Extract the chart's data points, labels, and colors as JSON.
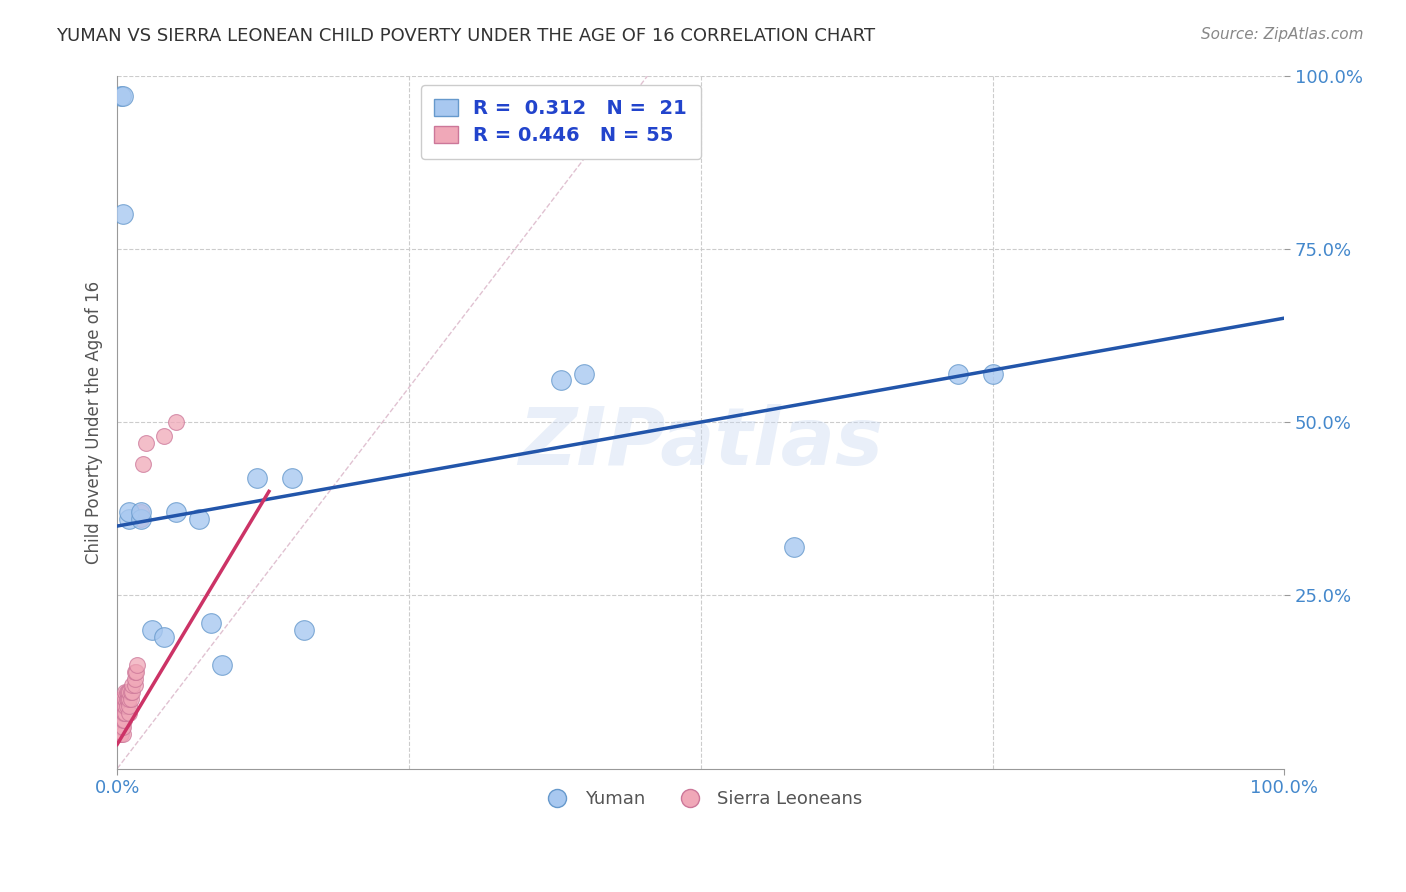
{
  "title": "YUMAN VS SIERRA LEONEAN CHILD POVERTY UNDER THE AGE OF 16 CORRELATION CHART",
  "source": "Source: ZipAtlas.com",
  "ylabel": "Child Poverty Under the Age of 16",
  "watermark": "ZIPatlas",
  "legend_r1": "R =  0.312   N =  21",
  "legend_r2": "R = 0.446   N = 55",
  "yuman_color": "#a8c8f0",
  "sierra_color": "#f0a8b8",
  "yuman_edge": "#6699cc",
  "sierra_edge": "#cc7799",
  "trend_blue": "#2255aa",
  "trend_pink": "#cc3366",
  "ref_line_color": "#ddbbcc",
  "grid_color": "#cccccc",
  "axis_label_color": "#4488cc",
  "title_color": "#333333",
  "yuman_x": [
    0.003,
    0.005,
    0.005,
    0.01,
    0.01,
    0.02,
    0.02,
    0.03,
    0.04,
    0.05,
    0.07,
    0.08,
    0.09,
    0.12,
    0.15,
    0.16,
    0.38,
    0.4,
    0.58,
    0.72,
    0.75
  ],
  "yuman_y": [
    0.97,
    0.8,
    0.97,
    0.36,
    0.37,
    0.36,
    0.37,
    0.2,
    0.19,
    0.37,
    0.36,
    0.21,
    0.15,
    0.42,
    0.42,
    0.2,
    0.56,
    0.57,
    0.32,
    0.57,
    0.57
  ],
  "sierra_x": [
    0.001,
    0.001,
    0.001,
    0.001,
    0.002,
    0.002,
    0.002,
    0.002,
    0.003,
    0.003,
    0.003,
    0.003,
    0.003,
    0.003,
    0.004,
    0.004,
    0.004,
    0.004,
    0.005,
    0.005,
    0.005,
    0.005,
    0.005,
    0.005,
    0.006,
    0.006,
    0.006,
    0.007,
    0.007,
    0.007,
    0.007,
    0.008,
    0.008,
    0.008,
    0.009,
    0.009,
    0.01,
    0.01,
    0.01,
    0.01,
    0.012,
    0.012,
    0.013,
    0.013,
    0.015,
    0.015,
    0.015,
    0.016,
    0.017,
    0.02,
    0.02,
    0.022,
    0.025,
    0.04,
    0.05
  ],
  "sierra_y": [
    0.05,
    0.06,
    0.07,
    0.08,
    0.05,
    0.06,
    0.07,
    0.08,
    0.05,
    0.06,
    0.07,
    0.08,
    0.09,
    0.1,
    0.06,
    0.07,
    0.08,
    0.09,
    0.05,
    0.06,
    0.07,
    0.08,
    0.09,
    0.1,
    0.07,
    0.08,
    0.09,
    0.08,
    0.09,
    0.1,
    0.11,
    0.09,
    0.1,
    0.11,
    0.1,
    0.11,
    0.08,
    0.09,
    0.1,
    0.11,
    0.1,
    0.11,
    0.11,
    0.12,
    0.12,
    0.13,
    0.14,
    0.14,
    0.15,
    0.36,
    0.37,
    0.44,
    0.47,
    0.48,
    0.5
  ],
  "xlim": [
    0.0,
    1.0
  ],
  "ylim": [
    0.0,
    1.0
  ],
  "xticks": [
    0.0,
    1.0
  ],
  "yticks": [
    0.25,
    0.5,
    0.75,
    1.0
  ],
  "xticklabels": [
    "0.0%",
    "100.0%"
  ],
  "yticklabels": [
    "25.0%",
    "50.0%",
    "75.0%",
    "100.0%"
  ],
  "blue_trend_x0": 0.0,
  "blue_trend_y0": 0.35,
  "blue_trend_x1": 1.0,
  "blue_trend_y1": 0.65,
  "pink_trend_x0": 0.0,
  "pink_trend_y0": 0.035,
  "pink_trend_x1": 0.13,
  "pink_trend_y1": 0.4
}
